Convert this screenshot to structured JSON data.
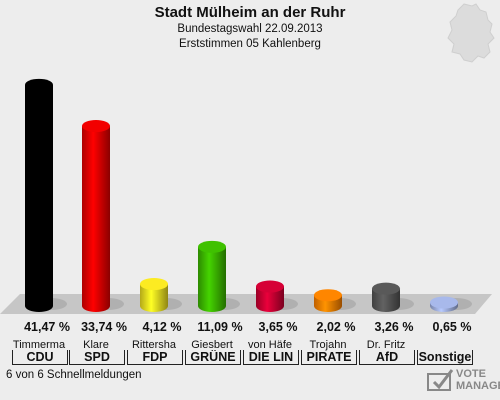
{
  "header": {
    "title": "Stadt Mülheim an der Ruhr",
    "subtitle1": "Bundestagswahl 22.09.2013",
    "subtitle2": "Erststimmen 05 Kahlenberg"
  },
  "chart_data": {
    "type": "bar",
    "categories": [
      "CDU",
      "SPD",
      "FDP",
      "GRÜNE",
      "DIE LINKE",
      "PIRATEN",
      "AfD",
      "Sonstige"
    ],
    "candidates": [
      "Timmerma",
      "Klare",
      "Rittersha",
      "Giesbert",
      "von Häfe",
      "Trojahn",
      "Dr. Fritz",
      ""
    ],
    "party_labels": [
      "CDU",
      "SPD",
      "FDP",
      "GRÜNE",
      "DIE LIN",
      "PIRATE",
      "AfD",
      "Sonstige"
    ],
    "values": [
      41.47,
      33.74,
      4.12,
      11.09,
      3.65,
      2.02,
      3.26,
      0.65
    ],
    "value_labels": [
      "41,47 %",
      "33,74 %",
      "4,12 %",
      "11,09 %",
      "3,65 %",
      "2,02 %",
      "3,26 %",
      "0,65 %"
    ],
    "colors": [
      "#000000",
      "#e60000",
      "#f0e020",
      "#3cb800",
      "#cc0033",
      "#ff8000",
      "#555555",
      "#a0b0e0"
    ],
    "ylim": [
      0,
      45
    ]
  },
  "footer": {
    "status": "6 von 6 Schnellmeldungen"
  },
  "logo": {
    "line1": "VOTE",
    "line2": "MANAGER"
  }
}
